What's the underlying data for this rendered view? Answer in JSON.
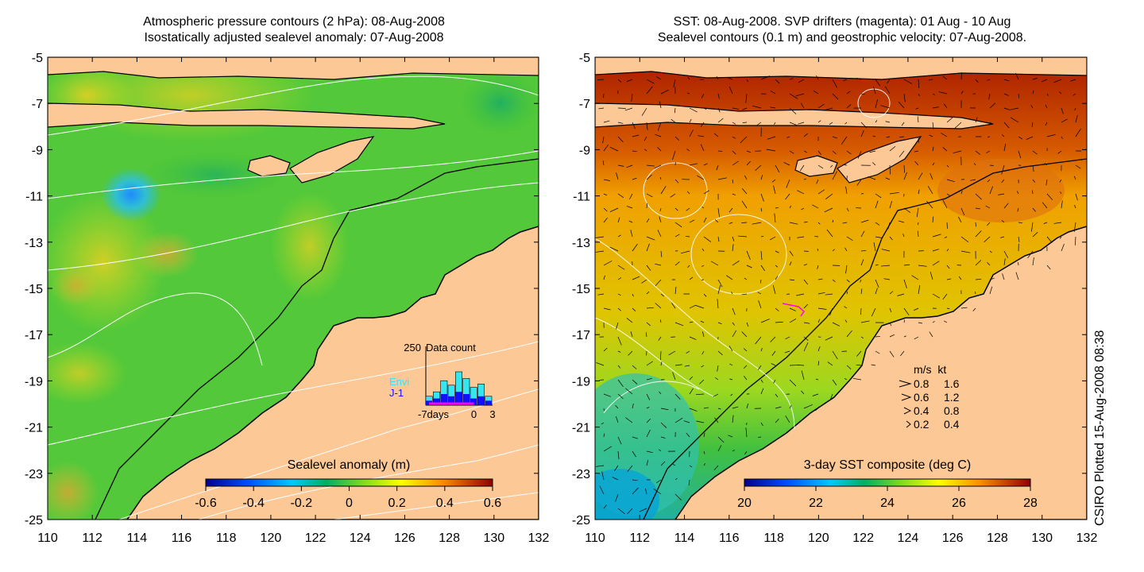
{
  "left_panel": {
    "title_line1": "Atmospheric pressure contours (2 hPa): 08-Aug-2008",
    "title_line2": "Isostatically adjusted sealevel anomaly: 07-Aug-2008",
    "colorbar": {
      "label": "Sealevel anomaly (m)",
      "ticks": [
        "-0.6",
        "-0.4",
        "-0.2",
        "0",
        "0.2",
        "0.4",
        "0.6"
      ],
      "range": [
        -0.6,
        0.6
      ]
    },
    "inset": {
      "y_label": "250",
      "title": "Data count",
      "legend": [
        {
          "name": "Envi",
          "color": "#33e6f0"
        },
        {
          "name": "J-1",
          "color": "#1010ff"
        }
      ],
      "x_ticks": [
        "-7days",
        "0",
        "3"
      ],
      "envi_counts": [
        40,
        60,
        110,
        90,
        150,
        120,
        80,
        95,
        40
      ],
      "j1_counts": [
        20,
        30,
        50,
        40,
        60,
        50,
        30,
        40,
        20
      ]
    }
  },
  "right_panel": {
    "title_line1": "SST: 08-Aug-2008. SVP drifters (magenta): 01 Aug - 10 Aug",
    "title_line2": "Sealevel contours (0.1 m) and geostrophic velocity: 07-Aug-2008.",
    "colorbar": {
      "label": "3-day SST composite (deg C)",
      "ticks": [
        "20",
        "22",
        "24",
        "26",
        "28"
      ],
      "range": [
        20,
        28
      ]
    },
    "velocity_key": {
      "header": "m/s  kt",
      "rows": [
        {
          "ms": "0.8",
          "kt": "1.6"
        },
        {
          "ms": "0.6",
          "kt": "1.2"
        },
        {
          "ms": "0.4",
          "kt": "0.8"
        },
        {
          "ms": "0.2",
          "kt": "0.4"
        }
      ]
    }
  },
  "axes": {
    "x_ticks": [
      "110",
      "112",
      "114",
      "116",
      "118",
      "120",
      "122",
      "124",
      "126",
      "128",
      "130",
      "132"
    ],
    "y_ticks": [
      "-5",
      "-7",
      "-9",
      "-11",
      "-13",
      "-15",
      "-17",
      "-19",
      "-21",
      "-23",
      "-25"
    ],
    "lon_range": [
      110,
      132
    ],
    "lat_range": [
      -25,
      -5
    ]
  },
  "credit": "CSIRO Plotted 15-Aug-2008 08:38",
  "colors": {
    "land": "#fcc896",
    "coast": "#000000",
    "contour": "#ffffff"
  }
}
